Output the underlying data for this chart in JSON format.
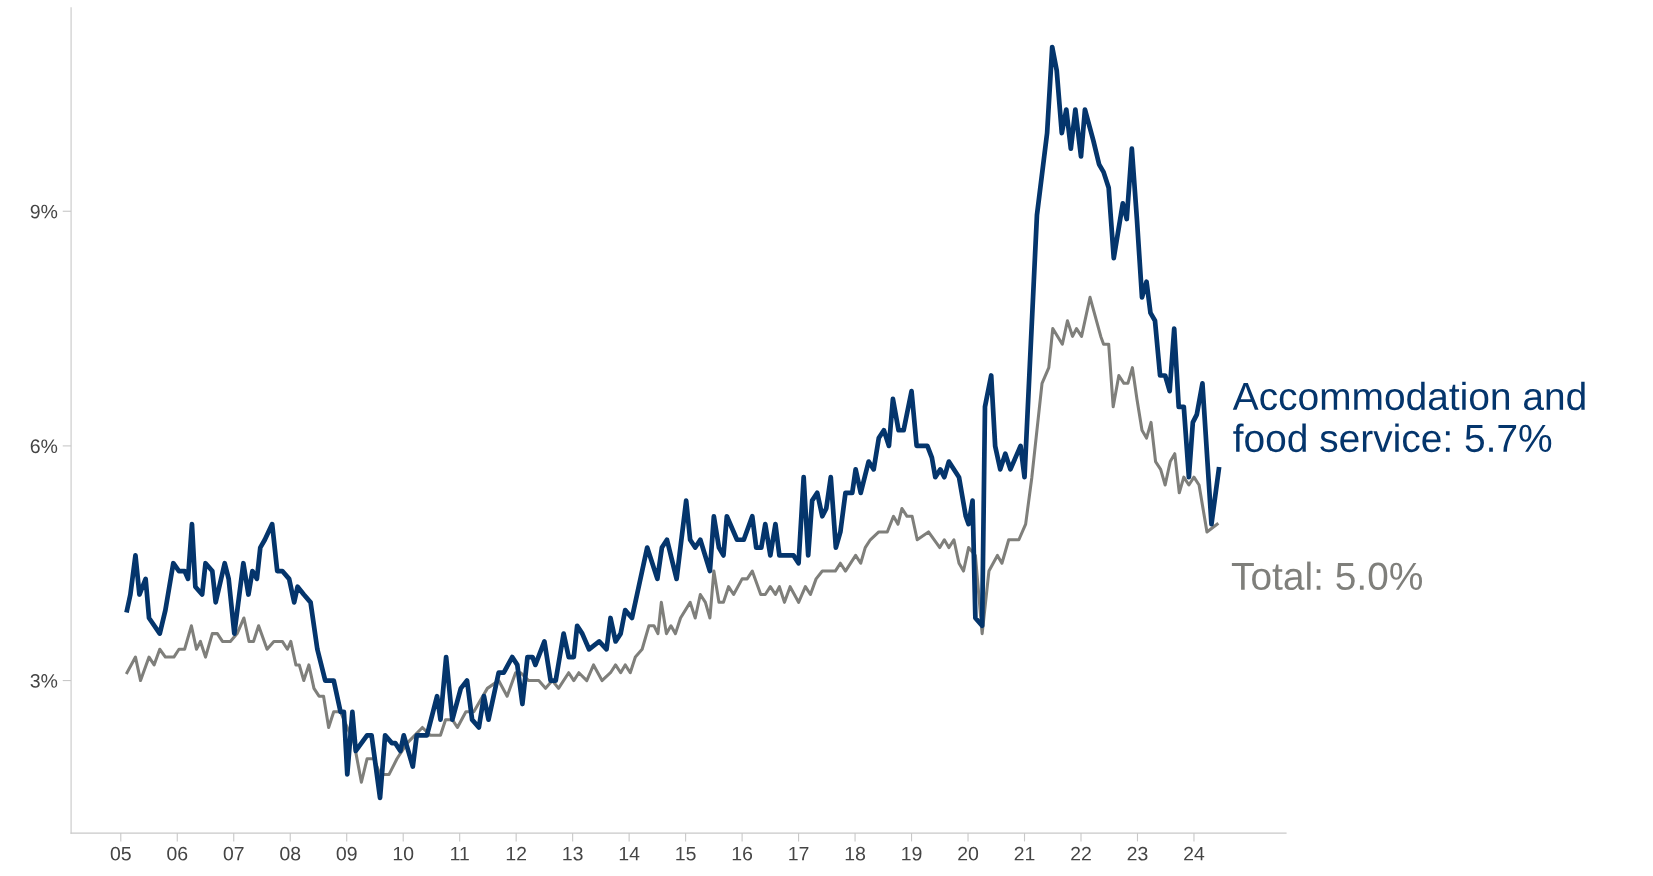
{
  "chart_data": {
    "type": "line",
    "xlim": [
      2004.12,
      2025.63
    ],
    "ylim": [
      1.05,
      11.6
    ],
    "xticks": [
      {
        "value": 2005,
        "label": "05"
      },
      {
        "value": 2006,
        "label": "06"
      },
      {
        "value": 2007,
        "label": "07"
      },
      {
        "value": 2008,
        "label": "08"
      },
      {
        "value": 2009,
        "label": "09"
      },
      {
        "value": 2010,
        "label": "10"
      },
      {
        "value": 2011,
        "label": "11"
      },
      {
        "value": 2012,
        "label": "12"
      },
      {
        "value": 2013,
        "label": "13"
      },
      {
        "value": 2014,
        "label": "14"
      },
      {
        "value": 2015,
        "label": "15"
      },
      {
        "value": 2016,
        "label": "16"
      },
      {
        "value": 2017,
        "label": "17"
      },
      {
        "value": 2018,
        "label": "18"
      },
      {
        "value": 2019,
        "label": "19"
      },
      {
        "value": 2020,
        "label": "20"
      },
      {
        "value": 2021,
        "label": "21"
      },
      {
        "value": 2022,
        "label": "22"
      },
      {
        "value": 2023,
        "label": "23"
      },
      {
        "value": 2024,
        "label": "24"
      }
    ],
    "yticks": [
      {
        "value": 3,
        "label": "3%"
      },
      {
        "value": 6,
        "label": "6%"
      },
      {
        "value": 9,
        "label": "9%"
      }
    ],
    "grid": false,
    "legend": false,
    "marker": "none",
    "line_style": "solid",
    "series": [
      {
        "name": "Total: 5.0%",
        "color": "#7f7f7b",
        "x": [
          2005.11,
          2005.26,
          2005.35,
          2005.5,
          2005.59,
          2005.69,
          2005.79,
          2005.94,
          2006.03,
          2006.13,
          2006.25,
          2006.34,
          2006.41,
          2006.5,
          2006.62,
          2006.71,
          2006.8,
          2006.94,
          2007.06,
          2007.18,
          2007.27,
          2007.35,
          2007.44,
          2007.59,
          2007.71,
          2007.86,
          2007.95,
          2008.01,
          2008.1,
          2008.16,
          2008.24,
          2008.33,
          2008.42,
          2008.51,
          2008.59,
          2008.68,
          2008.77,
          2008.89,
          2009.01,
          2009.13,
          2009.26,
          2009.36,
          2009.48,
          2009.59,
          2009.75,
          2009.89,
          2009.98,
          2010.07,
          2010.34,
          2010.48,
          2010.66,
          2010.75,
          2010.87,
          2010.96,
          2011.11,
          2011.25,
          2011.49,
          2011.69,
          2011.84,
          2011.99,
          2012.08,
          2012.22,
          2012.4,
          2012.52,
          2012.64,
          2012.75,
          2012.93,
          2013.02,
          2013.11,
          2013.25,
          2013.37,
          2013.52,
          2013.67,
          2013.76,
          2013.85,
          2013.93,
          2014.02,
          2014.11,
          2014.23,
          2014.35,
          2014.44,
          2014.51,
          2014.57,
          2014.66,
          2014.74,
          2014.82,
          2014.91,
          2015.08,
          2015.17,
          2015.26,
          2015.35,
          2015.43,
          2015.5,
          2015.59,
          2015.67,
          2015.76,
          2015.85,
          2016.0,
          2016.09,
          2016.18,
          2016.33,
          2016.41,
          2016.5,
          2016.59,
          2016.66,
          2016.75,
          2016.85,
          2017.0,
          2017.12,
          2017.21,
          2017.31,
          2017.42,
          2017.65,
          2017.74,
          2017.83,
          2018.01,
          2018.1,
          2018.18,
          2018.27,
          2018.42,
          2018.57,
          2018.68,
          2018.76,
          2018.83,
          2018.92,
          2019.01,
          2019.1,
          2019.3,
          2019.5,
          2019.58,
          2019.66,
          2019.75,
          2019.84,
          2019.92,
          2020.01,
          2020.13,
          2020.25,
          2020.37,
          2020.52,
          2020.6,
          2020.72,
          2020.9,
          2021.02,
          2021.13,
          2021.31,
          2021.43,
          2021.5,
          2021.67,
          2021.76,
          2021.85,
          2021.92,
          2022.01,
          2022.16,
          2022.35,
          2022.4,
          2022.49,
          2022.57,
          2022.67,
          2022.76,
          2022.83,
          2022.91,
          2022.99,
          2023.08,
          2023.16,
          2023.24,
          2023.32,
          2023.41,
          2023.49,
          2023.58,
          2023.66,
          2023.74,
          2023.82,
          2023.91,
          2024.0,
          2024.09,
          2024.23,
          2024.41
        ],
        "values": [
          3.1,
          3.3,
          3.0,
          3.3,
          3.2,
          3.4,
          3.3,
          3.3,
          3.4,
          3.4,
          3.7,
          3.4,
          3.5,
          3.3,
          3.6,
          3.6,
          3.5,
          3.5,
          3.6,
          3.8,
          3.5,
          3.5,
          3.7,
          3.4,
          3.5,
          3.5,
          3.4,
          3.5,
          3.2,
          3.2,
          3.0,
          3.2,
          2.9,
          2.8,
          2.8,
          2.4,
          2.6,
          2.6,
          2.4,
          2.2,
          1.7,
          2.0,
          2.0,
          1.8,
          1.8,
          2.0,
          2.1,
          2.2,
          2.4,
          2.3,
          2.3,
          2.5,
          2.5,
          2.4,
          2.6,
          2.6,
          2.9,
          3.0,
          2.8,
          3.1,
          3.1,
          3.0,
          3.0,
          2.9,
          3.0,
          2.9,
          3.1,
          3.0,
          3.1,
          3.0,
          3.2,
          3.0,
          3.1,
          3.2,
          3.1,
          3.2,
          3.1,
          3.3,
          3.4,
          3.7,
          3.7,
          3.6,
          4.0,
          3.6,
          3.7,
          3.6,
          3.8,
          4.0,
          3.8,
          4.1,
          4.0,
          3.8,
          4.4,
          4.0,
          4.0,
          4.2,
          4.1,
          4.3,
          4.3,
          4.4,
          4.1,
          4.1,
          4.2,
          4.1,
          4.2,
          4.0,
          4.2,
          4.0,
          4.2,
          4.1,
          4.3,
          4.4,
          4.4,
          4.5,
          4.4,
          4.6,
          4.5,
          4.7,
          4.8,
          4.9,
          4.9,
          5.1,
          5.0,
          5.2,
          5.1,
          5.1,
          4.8,
          4.9,
          4.7,
          4.8,
          4.7,
          4.8,
          4.5,
          4.4,
          4.7,
          4.6,
          3.6,
          4.4,
          4.6,
          4.5,
          4.8,
          4.8,
          5.0,
          5.6,
          6.8,
          7.0,
          7.5,
          7.3,
          7.6,
          7.4,
          7.5,
          7.4,
          7.9,
          7.4,
          7.3,
          7.3,
          6.5,
          6.9,
          6.8,
          6.8,
          7.0,
          6.6,
          6.2,
          6.1,
          6.3,
          5.8,
          5.7,
          5.5,
          5.8,
          5.9,
          5.4,
          5.6,
          5.5,
          5.6,
          5.5,
          4.9,
          5.0
        ]
      },
      {
        "name": "Accommodation and food service: 5.7%",
        "color": "#04356c",
        "x": [
          2005.11,
          2005.17,
          2005.26,
          2005.33,
          2005.44,
          2005.5,
          2005.69,
          2005.79,
          2005.93,
          2006.03,
          2006.13,
          2006.19,
          2006.26,
          2006.32,
          2006.44,
          2006.5,
          2006.62,
          2006.68,
          2006.84,
          2006.91,
          2007.01,
          2007.17,
          2007.26,
          2007.33,
          2007.41,
          2007.47,
          2007.55,
          2007.68,
          2007.77,
          2007.86,
          2007.98,
          2008.07,
          2008.13,
          2008.24,
          2008.36,
          2008.48,
          2008.62,
          2008.77,
          2008.89,
          2008.95,
          2009.01,
          2009.1,
          2009.16,
          2009.36,
          2009.44,
          2009.59,
          2009.68,
          2009.8,
          2009.86,
          2009.95,
          2010.01,
          2010.17,
          2010.24,
          2010.42,
          2010.6,
          2010.66,
          2010.76,
          2010.87,
          2011.02,
          2011.13,
          2011.22,
          2011.34,
          2011.43,
          2011.51,
          2011.69,
          2011.78,
          2011.93,
          2012.02,
          2012.11,
          2012.2,
          2012.29,
          2012.34,
          2012.5,
          2012.61,
          2012.7,
          2012.84,
          2012.93,
          2013.02,
          2013.08,
          2013.17,
          2013.29,
          2013.47,
          2013.6,
          2013.67,
          2013.76,
          2013.85,
          2013.93,
          2014.05,
          2014.32,
          2014.5,
          2014.58,
          2014.67,
          2014.84,
          2015.01,
          2015.08,
          2015.17,
          2015.26,
          2015.43,
          2015.5,
          2015.59,
          2015.67,
          2015.73,
          2015.91,
          2016.03,
          2016.18,
          2016.25,
          2016.34,
          2016.41,
          2016.5,
          2016.59,
          2016.66,
          2016.91,
          2017.0,
          2017.09,
          2017.17,
          2017.24,
          2017.33,
          2017.42,
          2017.49,
          2017.57,
          2017.66,
          2017.74,
          2017.83,
          2017.95,
          2018.01,
          2018.1,
          2018.24,
          2018.33,
          2018.42,
          2018.51,
          2018.6,
          2018.67,
          2018.77,
          2018.86,
          2019.0,
          2019.09,
          2019.28,
          2019.36,
          2019.42,
          2019.51,
          2019.58,
          2019.66,
          2019.84,
          2019.96,
          2020.01,
          2020.08,
          2020.13,
          2020.25,
          2020.3,
          2020.41,
          2020.48,
          2020.57,
          2020.66,
          2020.75,
          2020.93,
          2021.0,
          2021.22,
          2021.4,
          2021.49,
          2021.57,
          2021.66,
          2021.74,
          2021.82,
          2021.9,
          2022.0,
          2022.07,
          2022.22,
          2022.32,
          2022.4,
          2022.49,
          2022.58,
          2022.74,
          2022.81,
          2022.9,
          2022.99,
          2023.08,
          2023.16,
          2023.23,
          2023.31,
          2023.4,
          2023.49,
          2023.57,
          2023.65,
          2023.73,
          2023.82,
          2023.91,
          2023.98,
          2024.05,
          2024.15,
          2024.31,
          2024.44
        ],
        "values": [
          3.9,
          4.1,
          4.6,
          4.1,
          4.3,
          3.8,
          3.6,
          3.9,
          4.5,
          4.4,
          4.4,
          4.3,
          5.0,
          4.2,
          4.1,
          4.5,
          4.4,
          4.0,
          4.5,
          4.3,
          3.6,
          4.5,
          4.1,
          4.4,
          4.3,
          4.7,
          4.8,
          5.0,
          4.4,
          4.4,
          4.3,
          4.0,
          4.2,
          4.1,
          4.0,
          3.4,
          3.0,
          3.0,
          2.6,
          2.6,
          1.8,
          2.6,
          2.1,
          2.3,
          2.3,
          1.5,
          2.3,
          2.2,
          2.2,
          2.1,
          2.3,
          1.9,
          2.3,
          2.3,
          2.8,
          2.5,
          3.3,
          2.5,
          2.9,
          3.0,
          2.5,
          2.4,
          2.8,
          2.5,
          3.1,
          3.1,
          3.3,
          3.2,
          2.7,
          3.3,
          3.3,
          3.2,
          3.5,
          3.0,
          3.0,
          3.6,
          3.3,
          3.3,
          3.7,
          3.6,
          3.4,
          3.5,
          3.4,
          3.8,
          3.5,
          3.6,
          3.9,
          3.8,
          4.7,
          4.3,
          4.7,
          4.8,
          4.3,
          5.3,
          4.8,
          4.7,
          4.8,
          4.4,
          5.1,
          4.7,
          4.6,
          5.1,
          4.8,
          4.8,
          5.1,
          4.7,
          4.7,
          5.0,
          4.6,
          5.0,
          4.6,
          4.6,
          4.5,
          5.6,
          4.6,
          5.3,
          5.4,
          5.1,
          5.2,
          5.6,
          4.7,
          4.9,
          5.4,
          5.4,
          5.7,
          5.4,
          5.8,
          5.7,
          6.1,
          6.2,
          6.0,
          6.6,
          6.2,
          6.2,
          6.7,
          6.0,
          6.0,
          5.85,
          5.6,
          5.7,
          5.6,
          5.8,
          5.6,
          5.1,
          5.0,
          5.3,
          3.8,
          3.7,
          6.5,
          6.9,
          6.0,
          5.7,
          5.9,
          5.7,
          6.0,
          5.6,
          8.95,
          10.0,
          11.1,
          10.8,
          10.0,
          10.3,
          9.8,
          10.3,
          9.7,
          10.3,
          9.9,
          9.6,
          9.5,
          9.3,
          8.4,
          9.1,
          8.9,
          9.8,
          8.9,
          7.9,
          8.1,
          7.7,
          7.6,
          6.9,
          6.9,
          6.7,
          7.5,
          6.5,
          6.5,
          5.6,
          6.3,
          6.4,
          6.8,
          5.0,
          5.7
        ]
      }
    ]
  }
}
